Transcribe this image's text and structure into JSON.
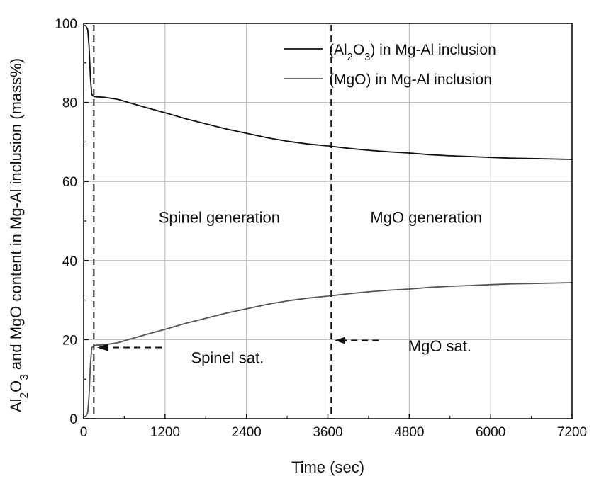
{
  "chart_data": {
    "type": "line",
    "title": "",
    "xlabel": "Time (sec)",
    "ylabel": {
      "parts": [
        {
          "t": "Al",
          "sub": false
        },
        {
          "t": "2",
          "sub": true
        },
        {
          "t": "O",
          "sub": false
        },
        {
          "t": "3",
          "sub": true
        },
        {
          "t": " and MgO content in Mg-Al inclusion (mass%)",
          "sub": false
        }
      ]
    },
    "xlim": [
      0,
      7200
    ],
    "ylim": [
      0,
      100
    ],
    "xticks": [
      "0",
      "1200",
      "2400",
      "3600",
      "4800",
      "6000",
      "7200"
    ],
    "yticks": [
      "0",
      "20",
      "40",
      "60",
      "80",
      "100"
    ],
    "xtick_values": [
      0,
      1200,
      2400,
      3600,
      4800,
      6000,
      7200
    ],
    "ytick_values": [
      0,
      20,
      40,
      60,
      80,
      100
    ],
    "grid": true,
    "legend_position": "top-right",
    "series": [
      {
        "name": "(Al2O3) in Mg-Al inclusion",
        "name_parts": [
          {
            "t": "(Al",
            "sub": false
          },
          {
            "t": "2",
            "sub": true
          },
          {
            "t": "O",
            "sub": false
          },
          {
            "t": "3",
            "sub": true
          },
          {
            "t": ") in Mg-Al inclusion",
            "sub": false
          }
        ],
        "color": "#111111",
        "x": [
          0,
          30,
          60,
          80,
          100,
          120,
          150,
          200,
          300,
          500,
          700,
          900,
          1200,
          1500,
          1800,
          2100,
          2400,
          2700,
          3000,
          3300,
          3600,
          3900,
          4200,
          4500,
          4800,
          5100,
          5400,
          5700,
          6000,
          6300,
          6600,
          6900,
          7200
        ],
        "y": [
          99.5,
          99.4,
          98.5,
          94,
          86,
          82,
          81.5,
          81.4,
          81.3,
          80.8,
          79.8,
          78.8,
          77.4,
          75.9,
          74.6,
          73.3,
          72.2,
          71.1,
          70.2,
          69.5,
          69.0,
          68.4,
          67.9,
          67.5,
          67.2,
          66.8,
          66.5,
          66.3,
          66.1,
          65.9,
          65.8,
          65.7,
          65.6
        ]
      },
      {
        "name": "(MgO) in Mg-Al inclusion",
        "name_parts": [
          {
            "t": "(MgO) in Mg-Al inclusion",
            "sub": false
          }
        ],
        "color": "#555555",
        "x": [
          0,
          30,
          60,
          80,
          100,
          120,
          150,
          200,
          300,
          500,
          700,
          900,
          1200,
          1500,
          1800,
          2100,
          2400,
          2700,
          3000,
          3300,
          3600,
          3900,
          4200,
          4500,
          4800,
          5100,
          5400,
          5700,
          6000,
          6300,
          6600,
          6900,
          7200
        ],
        "y": [
          0.5,
          0.6,
          1.5,
          6,
          14,
          18,
          18.5,
          18.6,
          18.7,
          19.2,
          20.2,
          21.2,
          22.6,
          24.1,
          25.4,
          26.7,
          27.8,
          28.9,
          29.8,
          30.5,
          31.0,
          31.6,
          32.1,
          32.5,
          32.8,
          33.2,
          33.5,
          33.7,
          33.9,
          34.1,
          34.2,
          34.3,
          34.4
        ]
      }
    ],
    "vlines": [
      {
        "x": 150,
        "style": "dashed"
      },
      {
        "x": 3650,
        "style": "dashed"
      }
    ],
    "annotations": [
      {
        "id": "spinel-generation",
        "text": "Spinel generation",
        "x": 2000,
        "y": 51
      },
      {
        "id": "mgo-generation",
        "text": "MgO generation",
        "x": 5050,
        "y": 51
      },
      {
        "id": "spinel-sat",
        "text": "Spinel sat.",
        "x": 2120,
        "y": 15.5,
        "arrow": {
          "from": [
            1150,
            18
          ],
          "to": [
            200,
            18
          ]
        }
      },
      {
        "id": "mgo-sat",
        "text": "MgO sat.",
        "x": 5250,
        "y": 18.5,
        "arrow": {
          "from": [
            4350,
            19.8
          ],
          "to": [
            3700,
            19.8
          ]
        }
      }
    ]
  }
}
